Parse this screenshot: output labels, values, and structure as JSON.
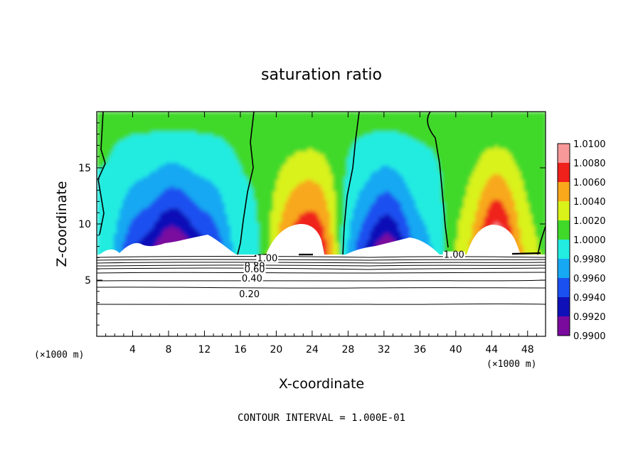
{
  "chart_data": {
    "type": "heatmap",
    "title": "saturation ratio",
    "xlabel": "X-coordinate",
    "ylabel": "Z-coordinate",
    "x_unit": "(×1000 m)",
    "xlim": [
      0,
      50
    ],
    "ylim": [
      0,
      20
    ],
    "x_ticks": [
      4,
      8,
      12,
      16,
      20,
      24,
      28,
      32,
      36,
      40,
      44,
      48
    ],
    "y_ticks": [
      5,
      10,
      15
    ],
    "colorbar": {
      "levels": [
        "0.9900",
        "0.9920",
        "0.9940",
        "0.9960",
        "0.9980",
        "1.0000",
        "1.0020",
        "1.0040",
        "1.0060",
        "1.0080",
        "1.0100"
      ],
      "colors": [
        "#7a0a9e",
        "#1010b8",
        "#1a50f0",
        "#16a8f2",
        "#22ece0",
        "#40d92a",
        "#d9f21a",
        "#f8a81a",
        "#f0201a",
        "#f79999"
      ]
    },
    "contour_labels": [
      {
        "text": "1.00",
        "x": 19.0,
        "z": 7.0
      },
      {
        "text": "1.00",
        "x": 39.8,
        "z": 7.3
      },
      {
        "text": "0.80",
        "x": 17.6,
        "z": 6.3
      },
      {
        "text": "0.60",
        "x": 17.6,
        "z": 6.0
      },
      {
        "text": "0.40",
        "x": 17.3,
        "z": 5.2
      },
      {
        "text": "0.20",
        "x": 17.0,
        "z": 3.8
      }
    ],
    "footer": "CONTOUR INTERVAL = 1.000E-01"
  }
}
